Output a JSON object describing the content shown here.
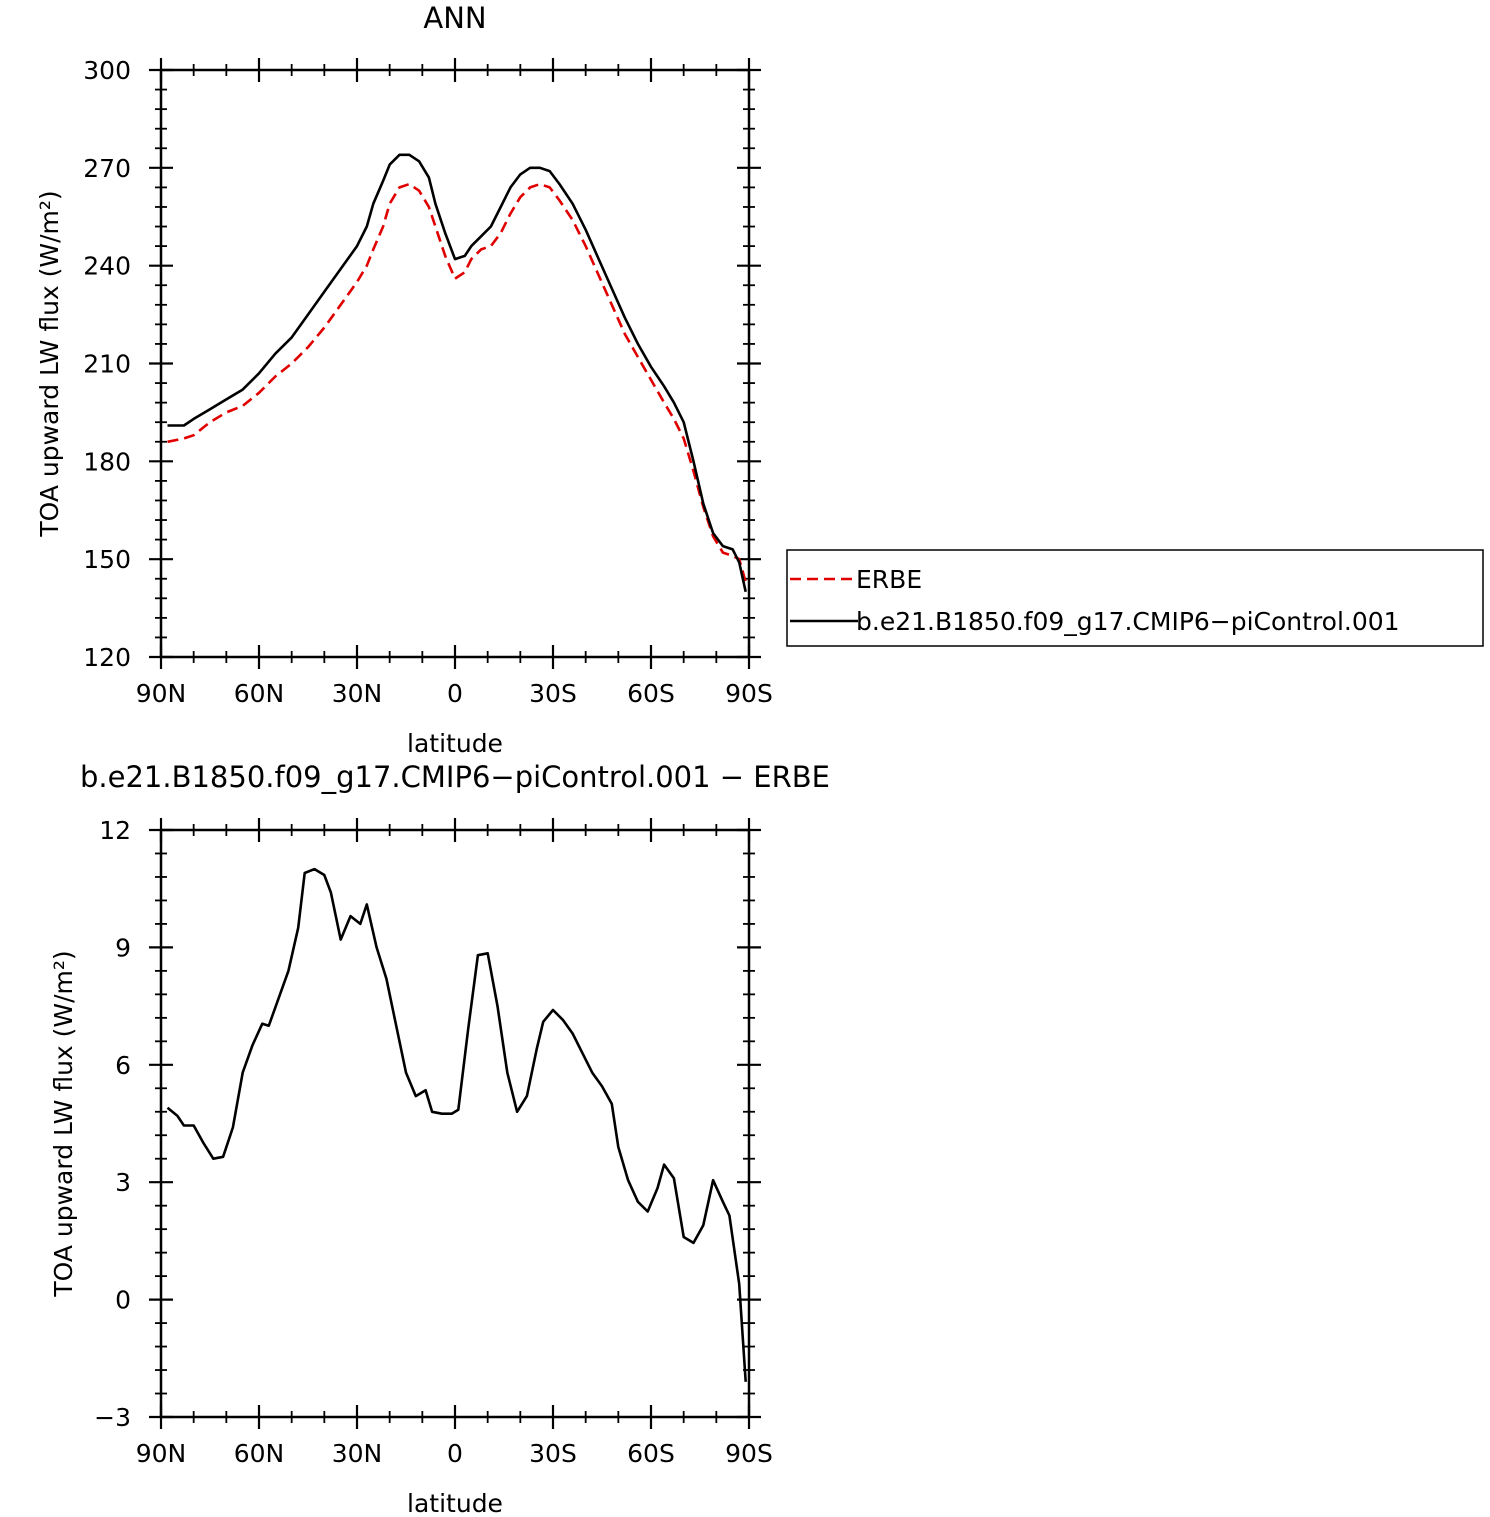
{
  "chart_data": [
    {
      "type": "line",
      "title": "ANN",
      "xlabel": "latitude",
      "ylabel": "TOA upward LW flux (W/m²)",
      "xlim": [
        90,
        -90
      ],
      "ylim": [
        120,
        300
      ],
      "x_ticks": [
        {
          "value": 90,
          "label": "90N"
        },
        {
          "value": 60,
          "label": "60N"
        },
        {
          "value": 30,
          "label": "30N"
        },
        {
          "value": 0,
          "label": "0"
        },
        {
          "value": -30,
          "label": "30S"
        },
        {
          "value": -60,
          "label": "60S"
        },
        {
          "value": -90,
          "label": "90S"
        }
      ],
      "y_ticks": [
        {
          "value": 300,
          "label": "300"
        },
        {
          "value": 270,
          "label": "270"
        },
        {
          "value": 240,
          "label": "240"
        },
        {
          "value": 210,
          "label": "210"
        },
        {
          "value": 180,
          "label": "180"
        },
        {
          "value": 150,
          "label": "150"
        },
        {
          "value": 120,
          "label": "120"
        }
      ],
      "legend": {
        "position": "right"
      },
      "series": [
        {
          "name": "ERBE",
          "color": "#e00000",
          "dash": "dashed",
          "points": [
            [
              88,
              186
            ],
            [
              83,
              187
            ],
            [
              80,
              188
            ],
            [
              75,
              192
            ],
            [
              70,
              195
            ],
            [
              65,
              197
            ],
            [
              60,
              201
            ],
            [
              55,
              206
            ],
            [
              50,
              210
            ],
            [
              45,
              215
            ],
            [
              40,
              221
            ],
            [
              35,
              228
            ],
            [
              30,
              235
            ],
            [
              27,
              240
            ],
            [
              25,
              245
            ],
            [
              22,
              252
            ],
            [
              20,
              259
            ],
            [
              17,
              264
            ],
            [
              14,
              265
            ],
            [
              11,
              263
            ],
            [
              8,
              258
            ],
            [
              6,
              252
            ],
            [
              3,
              243
            ],
            [
              0,
              236
            ],
            [
              -3,
              238
            ],
            [
              -5,
              242
            ],
            [
              -8,
              245
            ],
            [
              -11,
              246
            ],
            [
              -14,
              250
            ],
            [
              -17,
              256
            ],
            [
              -20,
              261
            ],
            [
              -23,
              264
            ],
            [
              -26,
              265
            ],
            [
              -29,
              264
            ],
            [
              -32,
              260
            ],
            [
              -36,
              254
            ],
            [
              -40,
              246
            ],
            [
              -44,
              237
            ],
            [
              -48,
              228
            ],
            [
              -52,
              219
            ],
            [
              -56,
              212
            ],
            [
              -60,
              205
            ],
            [
              -64,
              198
            ],
            [
              -67,
              193
            ],
            [
              -70,
              187
            ],
            [
              -73,
              177
            ],
            [
              -76,
              166
            ],
            [
              -79,
              157
            ],
            [
              -82,
              152
            ],
            [
              -85,
              151
            ],
            [
              -87,
              150
            ],
            [
              -89,
              143
            ]
          ]
        },
        {
          "name": "b.e21.B1850.f09_g17.CMIP6−piControl.001",
          "color": "#000000",
          "dash": "solid",
          "points": [
            [
              88,
              191
            ],
            [
              83,
              191
            ],
            [
              80,
              193
            ],
            [
              75,
              196
            ],
            [
              70,
              199
            ],
            [
              65,
              202
            ],
            [
              60,
              207
            ],
            [
              55,
              213
            ],
            [
              50,
              218
            ],
            [
              45,
              225
            ],
            [
              40,
              232
            ],
            [
              35,
              239
            ],
            [
              30,
              246
            ],
            [
              27,
              252
            ],
            [
              25,
              259
            ],
            [
              22,
              266
            ],
            [
              20,
              271
            ],
            [
              17,
              274
            ],
            [
              14,
              274
            ],
            [
              11,
              272
            ],
            [
              8,
              267
            ],
            [
              6,
              259
            ],
            [
              3,
              250
            ],
            [
              0,
              242
            ],
            [
              -3,
              243
            ],
            [
              -5,
              246
            ],
            [
              -8,
              249
            ],
            [
              -11,
              252
            ],
            [
              -14,
              258
            ],
            [
              -17,
              264
            ],
            [
              -20,
              268
            ],
            [
              -23,
              270
            ],
            [
              -26,
              270
            ],
            [
              -29,
              269
            ],
            [
              -32,
              265
            ],
            [
              -36,
              259
            ],
            [
              -40,
              251
            ],
            [
              -44,
              242
            ],
            [
              -48,
              233
            ],
            [
              -52,
              224
            ],
            [
              -56,
              216
            ],
            [
              -60,
              209
            ],
            [
              -64,
              203
            ],
            [
              -67,
              198
            ],
            [
              -70,
              192
            ],
            [
              -73,
              180
            ],
            [
              -76,
              167
            ],
            [
              -79,
              158
            ],
            [
              -82,
              154
            ],
            [
              -85,
              153
            ],
            [
              -87,
              149
            ],
            [
              -89,
              140
            ]
          ]
        }
      ]
    },
    {
      "type": "line",
      "title": "b.e21.B1850.f09_g17.CMIP6−piControl.001  −  ERBE",
      "xlabel": "latitude",
      "ylabel": "TOA upward LW flux (W/m²)",
      "xlim": [
        90,
        -90
      ],
      "ylim": [
        -3,
        12
      ],
      "x_ticks": [
        {
          "value": 90,
          "label": "90N"
        },
        {
          "value": 60,
          "label": "60N"
        },
        {
          "value": 30,
          "label": "30N"
        },
        {
          "value": 0,
          "label": "0"
        },
        {
          "value": -30,
          "label": "30S"
        },
        {
          "value": -60,
          "label": "60S"
        },
        {
          "value": -90,
          "label": "90S"
        }
      ],
      "y_ticks": [
        {
          "value": 12,
          "label": "12"
        },
        {
          "value": 9,
          "label": "9"
        },
        {
          "value": 6,
          "label": "6"
        },
        {
          "value": 3,
          "label": "3"
        },
        {
          "value": 0,
          "label": "0"
        },
        {
          "value": -3,
          "label": "−3"
        }
      ],
      "series": [
        {
          "color": "#000000",
          "dash": "solid",
          "points": [
            [
              88,
              4.9
            ],
            [
              85,
              4.7
            ],
            [
              83,
              4.45
            ],
            [
              80,
              4.45
            ],
            [
              77,
              4.0
            ],
            [
              74,
              3.6
            ],
            [
              71,
              3.65
            ],
            [
              68,
              4.4
            ],
            [
              65,
              5.8
            ],
            [
              62,
              6.5
            ],
            [
              59,
              7.05
            ],
            [
              57,
              7.0
            ],
            [
              54,
              7.7
            ],
            [
              51,
              8.4
            ],
            [
              48,
              9.5
            ],
            [
              46,
              10.9
            ],
            [
              43,
              11.0
            ],
            [
              40,
              10.85
            ],
            [
              38,
              10.4
            ],
            [
              35,
              9.2
            ],
            [
              32,
              9.8
            ],
            [
              29,
              9.6
            ],
            [
              27,
              10.1
            ],
            [
              24,
              9.0
            ],
            [
              21,
              8.2
            ],
            [
              18,
              7.0
            ],
            [
              15,
              5.8
            ],
            [
              12,
              5.2
            ],
            [
              9,
              5.35
            ],
            [
              7,
              4.8
            ],
            [
              4,
              4.75
            ],
            [
              1,
              4.75
            ],
            [
              -1,
              4.85
            ],
            [
              -4,
              6.9
            ],
            [
              -7,
              8.8
            ],
            [
              -10,
              8.85
            ],
            [
              -13,
              7.5
            ],
            [
              -16,
              5.8
            ],
            [
              -19,
              4.8
            ],
            [
              -22,
              5.2
            ],
            [
              -25,
              6.4
            ],
            [
              -27,
              7.1
            ],
            [
              -30,
              7.4
            ],
            [
              -33,
              7.15
            ],
            [
              -36,
              6.8
            ],
            [
              -39,
              6.3
            ],
            [
              -42,
              5.8
            ],
            [
              -45,
              5.45
            ],
            [
              -48,
              5.0
            ],
            [
              -50,
              3.9
            ],
            [
              -53,
              3.05
            ],
            [
              -56,
              2.5
            ],
            [
              -59,
              2.25
            ],
            [
              -62,
              2.85
            ],
            [
              -64,
              3.45
            ],
            [
              -67,
              3.1
            ],
            [
              -70,
              1.6
            ],
            [
              -73,
              1.45
            ],
            [
              -76,
              1.9
            ],
            [
              -79,
              3.05
            ],
            [
              -82,
              2.5
            ],
            [
              -84,
              2.15
            ],
            [
              -87,
              0.4
            ],
            [
              -89,
              -2.1
            ]
          ]
        }
      ]
    }
  ]
}
